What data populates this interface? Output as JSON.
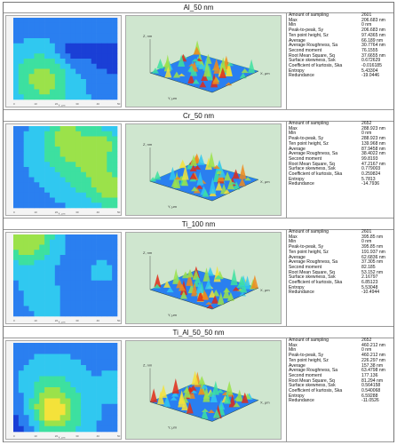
{
  "samples": [
    {
      "title": "Al_50 nm",
      "stats": [
        [
          "Amount of sampling",
          "2601"
        ],
        [
          "Max",
          "206.683 nm"
        ],
        [
          "Min",
          "0 nm"
        ],
        [
          "Peak-to-peak, Sy",
          "206.683 nm"
        ],
        [
          "Ten point height, Sz",
          "97.4365 nm"
        ],
        [
          "Average",
          "66.189 nm"
        ],
        [
          "Average Roughness, Sa",
          "30.7764 nm"
        ],
        [
          "Second moment",
          "76.1555"
        ],
        [
          "Root Mean Square, Sq",
          "37.6655 nm"
        ],
        [
          "Surface skewness, Ssk",
          "0.672629"
        ],
        [
          "Coefficient of kurtosis, Ska",
          "-0.016185"
        ],
        [
          "Entropy",
          "5.43304"
        ],
        [
          "Redundance",
          "-19.0446"
        ]
      ]
    },
    {
      "title": "Cr_50 nm",
      "stats": [
        [
          "Amount of sampling",
          "2652"
        ],
        [
          "Max",
          "288.923 nm"
        ],
        [
          "Min",
          "0 nm"
        ],
        [
          "Peak-to-peak, Sy",
          "288.923 nm"
        ],
        [
          "Ten point height, Sz",
          "139.968 nm"
        ],
        [
          "Average",
          "87.9458 nm"
        ],
        [
          "Average Roughness, Sa",
          "38.4022 nm"
        ],
        [
          "Second moment",
          "99.8193"
        ],
        [
          "Root Mean Square, Sq",
          "47.2167 nm"
        ],
        [
          "Surface skewness, Ssk",
          "0.779003"
        ],
        [
          "Coefficient of kurtosis, Ska",
          "0.259824"
        ],
        [
          "Entropy",
          "5.7813"
        ],
        [
          "Redundance",
          "-14.7936"
        ]
      ]
    },
    {
      "title": "Ti_100 nm",
      "stats": [
        [
          "Amount of sampling",
          "2601"
        ],
        [
          "Max",
          "395.85 nm"
        ],
        [
          "Min",
          "0 nm"
        ],
        [
          "Peak-to-peak, Sy",
          "395.85 nm"
        ],
        [
          "Ten point height, Sz",
          "191.937 nm"
        ],
        [
          "Average",
          "62.6836 nm"
        ],
        [
          "Average Roughness, Sa",
          "37.305 nm"
        ],
        [
          "Second moment",
          "82.185"
        ],
        [
          "Root Mean Square, Sq",
          "53.152 nm"
        ],
        [
          "Surface skewness, Ssk",
          "2.16797"
        ],
        [
          "Coefficient of kurtosis, Ska",
          "6.85123"
        ],
        [
          "Entropy",
          "5.53048"
        ],
        [
          "Redundance",
          "-10.4944"
        ]
      ]
    },
    {
      "title": "Ti_Al_50_50 nm",
      "stats": [
        [
          "Amount of sampling",
          "2652"
        ],
        [
          "Max",
          "460.212 nm"
        ],
        [
          "Min",
          "0 nm"
        ],
        [
          "Peak-to-peak, Sy",
          "460.212 nm"
        ],
        [
          "Ten point height, Sz",
          "226.297 nm"
        ],
        [
          "Average",
          "157.38 nm"
        ],
        [
          "Average Roughness, Sa",
          "63.4798 nm"
        ],
        [
          "Second moment",
          "177.136"
        ],
        [
          "Root Mean Square, Sq",
          "81.294 nm"
        ],
        [
          "Surface skewness, Ssk",
          "0.564158"
        ],
        [
          "Coefficient of kurtosis, Ska",
          "0.540068"
        ],
        [
          "Entropy",
          "6.59288"
        ],
        [
          "Redundance",
          "-11.0526"
        ]
      ]
    }
  ],
  "axis_labels": {
    "x": "X, μm",
    "y": "Y, μm",
    "z": "Z, nm"
  },
  "colors": {
    "map_background": "#1f55e0",
    "plot_background": "#cfe6cf",
    "heat_scale": [
      "#1a3fd6",
      "#2a7ff0",
      "#30c8f0",
      "#3de0a0",
      "#9be24a",
      "#f4e23a",
      "#f08a1c",
      "#e02a18"
    ]
  }
}
